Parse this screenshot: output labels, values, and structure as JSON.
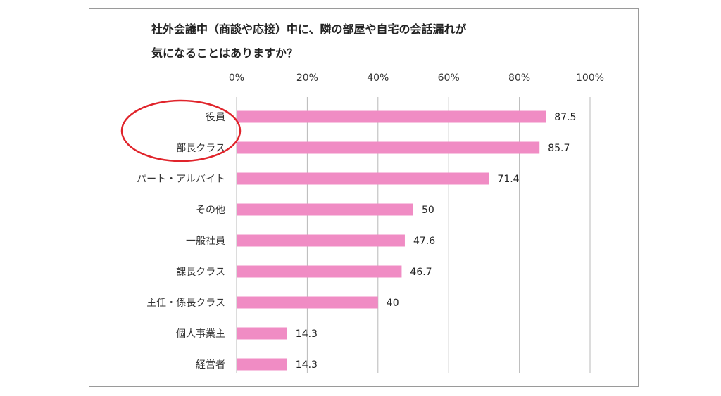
{
  "chart_data": {
    "type": "bar",
    "orientation": "horizontal",
    "title_lines": [
      "社外会議中（商談や応接）中に、隣の部屋や自宅の会話漏れが",
      "気になることはありますか？"
    ],
    "xlim": [
      0,
      100
    ],
    "ticks": [
      "0%",
      "20%",
      "40%",
      "60%",
      "80%",
      "100%"
    ],
    "tick_values": [
      0,
      20,
      40,
      60,
      80,
      100
    ],
    "grid": true,
    "categories": [
      "役員",
      "部長クラス",
      "パート・アルバイト",
      "その他",
      "一般社員",
      "課長クラス",
      "主任・係長クラス",
      "個人事業主",
      "経営者"
    ],
    "values": [
      87.5,
      85.7,
      71.4,
      50,
      47.6,
      46.7,
      40,
      14.3,
      14.3
    ],
    "value_labels": [
      "87.5",
      "85.7",
      "71.4",
      "50",
      "47.6",
      "46.7",
      "40",
      "14.3",
      "14.3"
    ],
    "bar_color": "#f08cc4",
    "highlight": {
      "categories": [
        "役員",
        "部長クラス"
      ],
      "color": "#e0242b",
      "shape": "ellipse"
    }
  }
}
